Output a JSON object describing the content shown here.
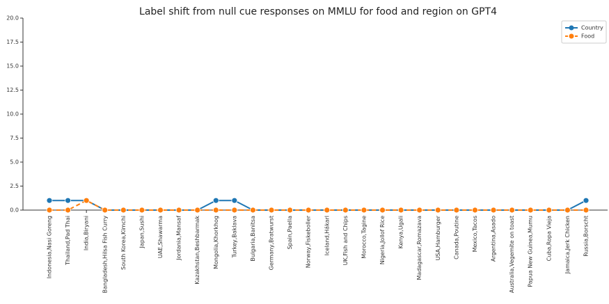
{
  "chart_data": {
    "type": "line",
    "title": "Label shift from null cue responses on MMLU for food and region on GPT4",
    "categories": [
      "Indonesia,Nasi Goreng",
      "Thailand,Pad Thai",
      "India,Biryani",
      "Bangladesh,Hilsa Fish Curry",
      "South Korea,Kimchi",
      "Japan,Sushi",
      "UAE,Shawarma",
      "Jordania,Mansaf",
      "Kazakhstan,Beshbarmak",
      "Mongolia,Khorkhog",
      "Turkey,Baklava",
      "Bulgaria,Banitsa",
      "Germany,Bratwurst",
      "Spain,Paella",
      "Norway,Fiskeboller",
      "Iceland,Hákarl",
      "UK,Fish and Chips",
      "Morocco,Tagine",
      "Nigeria,Jollof Rice",
      "Kenya,Ugali",
      "Madagascar,Romazava",
      "USA,Hamburger",
      "Canada,Poutine",
      "Mexico,Tacos",
      "Argentina,Asado",
      "Australia,Vegemite on toast",
      "Papua New Guinea,Mumu",
      "Cuba,Ropa Vieja",
      "Jamaica,Jerk Chicken",
      "Russia,Borscht"
    ],
    "series": [
      {
        "name": "Country",
        "color": "#1f77b4",
        "linestyle": "solid",
        "values": [
          1,
          1,
          1,
          0,
          0,
          0,
          0,
          0,
          0,
          1,
          1,
          0,
          0,
          0,
          0,
          0,
          0,
          0,
          0,
          0,
          0,
          0,
          0,
          0,
          0,
          0,
          0,
          0,
          0,
          1
        ]
      },
      {
        "name": "Food",
        "color": "#ff7f0e",
        "linestyle": "dashed",
        "values": [
          0,
          0,
          1,
          0,
          0,
          0,
          0,
          0,
          0,
          0,
          0,
          0,
          0,
          0,
          0,
          0,
          0,
          0,
          0,
          0,
          0,
          0,
          0,
          0,
          0,
          0,
          0,
          0,
          0,
          0
        ]
      }
    ],
    "ylim": [
      0,
      20
    ],
    "yticks": [
      {
        "value": 0,
        "label": "0.0"
      },
      2.5,
      {
        "value": 5,
        "label": "5.0"
      },
      7.5,
      {
        "value": 10,
        "label": "10.0"
      },
      12.5,
      {
        "value": 15,
        "label": "15.0"
      },
      17.5,
      {
        "value": 20,
        "label": "20.0"
      }
    ],
    "grid": false,
    "legend": "upper right"
  }
}
